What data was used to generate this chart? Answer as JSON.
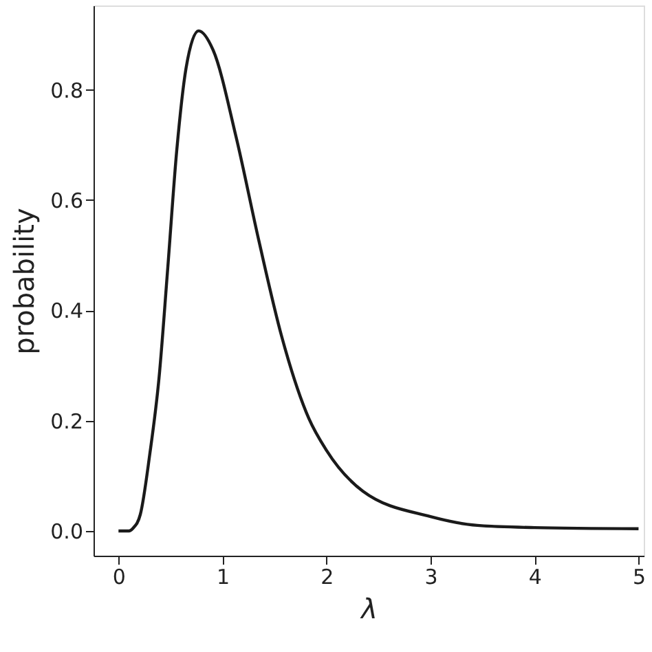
{
  "chart_data": {
    "type": "line",
    "xlabel": "λ",
    "ylabel": "probability",
    "x": [
      0,
      0.1,
      0.14,
      0.21,
      0.3,
      0.39,
      0.47,
      0.56,
      0.65,
      0.77,
      0.91,
      1.13,
      1.35,
      1.57,
      1.83,
      2.0,
      2.35,
      3.0,
      3.45,
      4.0,
      5.0
    ],
    "series": [
      {
        "color": "#1a1a1a",
        "values": [
          0,
          0,
          0.005,
          0.03,
          0.138,
          0.278,
          0.468,
          0.69,
          0.84,
          0.907,
          0.872,
          0.715,
          0.526,
          0.352,
          0.204,
          0.146,
          0.072,
          0.026,
          0.01,
          0.006,
          0.004
        ]
      }
    ],
    "xlim": [
      -0.24,
      5.05
    ],
    "ylim": [
      -0.045,
      0.953
    ],
    "xticks": [
      0,
      1,
      2,
      3,
      4,
      5
    ],
    "yticks": [
      {
        "value": 0,
        "label": "0.0"
      },
      {
        "value": 0.2,
        "label": "0.2"
      },
      {
        "value": 0.4,
        "label": "0.4"
      },
      {
        "value": 0.6,
        "label": "0.6"
      },
      {
        "value": 0.8,
        "label": "0.8"
      }
    ],
    "grid": false,
    "marker": "none",
    "line_style": "solid"
  }
}
